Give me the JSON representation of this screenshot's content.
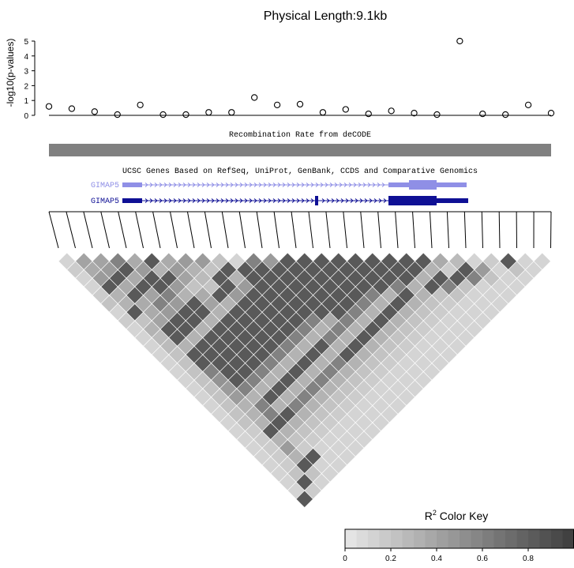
{
  "chart_data": [
    {
      "type": "scatter",
      "title": "Physical Length:9.1kb",
      "ylabel": "-log10(p-values)",
      "ylim": [
        0,
        5
      ],
      "yticks": [
        "5",
        "4",
        "3",
        "2",
        "1",
        "0"
      ],
      "points_neglog10p": [
        [
          1,
          0.6
        ],
        [
          2,
          0.45
        ],
        [
          3,
          0.25
        ],
        [
          4,
          0.05
        ],
        [
          5,
          0.7
        ],
        [
          6,
          0.05
        ],
        [
          7,
          0.05
        ],
        [
          8,
          0.2
        ],
        [
          9,
          0.2
        ],
        [
          10,
          1.2
        ],
        [
          11,
          0.7
        ],
        [
          12,
          0.75
        ],
        [
          13,
          0.2
        ],
        [
          14,
          0.4
        ],
        [
          15,
          0.1
        ],
        [
          16,
          0.3
        ],
        [
          17,
          0.15
        ],
        [
          18,
          0.05
        ],
        [
          19,
          5.0
        ],
        [
          20,
          0.1
        ],
        [
          21,
          0.05
        ],
        [
          22,
          0.7
        ],
        [
          23,
          0.15
        ]
      ]
    },
    {
      "type": "heatmap",
      "title": "R^2 Color Key",
      "colorkey_ticks": [
        "0",
        "0.2",
        "0.4",
        "0.6",
        "0.8"
      ],
      "n_markers": 30,
      "levels_rows_by_diagonal_offset": [
        [
          0.1,
          0.4,
          0.4,
          0.6,
          0.35,
          0.85,
          0.35,
          0.45,
          0.45,
          0.2,
          0.1,
          0.6,
          0.45,
          0.85,
          0.85,
          0.85,
          0.85,
          0.85,
          0.85,
          0.85,
          0.85,
          0.85,
          0.35,
          0.25,
          0.1,
          0.15,
          0.85,
          0.1,
          0.1
        ],
        [
          0.15,
          0.35,
          0.45,
          0.85,
          0.45,
          0.3,
          0.45,
          0.3,
          0.2,
          0.85,
          0.85,
          0.85,
          0.85,
          0.85,
          0.85,
          0.85,
          0.85,
          0.85,
          0.85,
          0.85,
          0.85,
          0.3,
          0.15,
          0.85,
          0.45,
          0.1,
          0.2,
          0.1
        ],
        [
          0.1,
          0.45,
          0.85,
          0.35,
          0.85,
          0.85,
          0.4,
          0.25,
          0.85,
          0.3,
          0.85,
          0.85,
          0.85,
          0.85,
          0.85,
          0.85,
          0.85,
          0.85,
          0.85,
          0.85,
          0.3,
          0.85,
          0.85,
          0.6,
          0.2,
          0.1,
          0.1
        ],
        [
          0.1,
          0.85,
          0.35,
          0.85,
          0.85,
          0.45,
          0.2,
          0.2,
          0.85,
          0.45,
          0.85,
          0.85,
          0.85,
          0.85,
          0.85,
          0.85,
          0.85,
          0.85,
          0.6,
          0.3,
          0.85,
          0.6,
          0.2,
          0.1,
          0.1,
          0.1
        ],
        [
          0.15,
          0.3,
          0.85,
          0.4,
          0.6,
          0.3,
          0.35,
          0.85,
          0.45,
          0.85,
          0.85,
          0.85,
          0.85,
          0.85,
          0.85,
          0.85,
          0.6,
          0.3,
          0.85,
          0.3,
          0.2,
          0.2,
          0.1,
          0.1,
          0.1
        ],
        [
          0.2,
          0.3,
          0.35,
          0.6,
          0.45,
          0.85,
          0.4,
          0.3,
          0.85,
          0.85,
          0.85,
          0.85,
          0.85,
          0.85,
          0.85,
          0.6,
          0.3,
          0.85,
          0.3,
          0.2,
          0.15,
          0.1,
          0.1,
          0.1
        ],
        [
          0.1,
          0.85,
          0.35,
          0.45,
          0.85,
          0.85,
          0.3,
          0.85,
          0.85,
          0.85,
          0.85,
          0.85,
          0.85,
          0.85,
          0.6,
          0.3,
          0.85,
          0.3,
          0.2,
          0.15,
          0.1,
          0.1,
          0.1
        ],
        [
          0.15,
          0.2,
          0.4,
          0.85,
          0.85,
          0.3,
          0.85,
          0.85,
          0.85,
          0.85,
          0.85,
          0.6,
          0.35,
          0.6,
          0.3,
          0.85,
          0.3,
          0.2,
          0.15,
          0.1,
          0.1,
          0.1
        ],
        [
          0.1,
          0.3,
          0.85,
          0.85,
          0.3,
          0.85,
          0.85,
          0.85,
          0.85,
          0.85,
          0.6,
          0.3,
          0.6,
          0.3,
          0.85,
          0.3,
          0.2,
          0.15,
          0.1,
          0.1,
          0.1
        ],
        [
          0.1,
          0.25,
          0.85,
          0.3,
          0.85,
          0.85,
          0.85,
          0.85,
          0.85,
          0.6,
          0.3,
          0.6,
          0.3,
          0.85,
          0.3,
          0.2,
          0.15,
          0.1,
          0.1,
          0.1
        ],
        [
          0.1,
          0.25,
          0.3,
          0.85,
          0.85,
          0.85,
          0.85,
          0.85,
          0.6,
          0.3,
          0.85,
          0.3,
          0.85,
          0.3,
          0.2,
          0.15,
          0.1,
          0.1,
          0.1
        ],
        [
          0.1,
          0.2,
          0.85,
          0.85,
          0.85,
          0.85,
          0.85,
          0.6,
          0.3,
          0.85,
          0.3,
          0.85,
          0.3,
          0.2,
          0.15,
          0.1,
          0.1,
          0.1
        ],
        [
          0.1,
          0.2,
          0.85,
          0.85,
          0.85,
          0.85,
          0.6,
          0.3,
          0.85,
          0.3,
          0.6,
          0.3,
          0.2,
          0.15,
          0.1,
          0.1,
          0.1
        ],
        [
          0.1,
          0.2,
          0.6,
          0.85,
          0.85,
          0.6,
          0.3,
          0.85,
          0.3,
          0.6,
          0.3,
          0.2,
          0.15,
          0.1,
          0.1,
          0.1
        ],
        [
          0.1,
          0.2,
          0.5,
          0.85,
          0.6,
          0.3,
          0.85,
          0.3,
          0.6,
          0.3,
          0.2,
          0.15,
          0.1,
          0.1,
          0.1
        ],
        [
          0.1,
          0.2,
          0.45,
          0.6,
          0.3,
          0.85,
          0.3,
          0.6,
          0.3,
          0.2,
          0.15,
          0.1,
          0.1,
          0.1
        ],
        [
          0.1,
          0.2,
          0.45,
          0.3,
          0.85,
          0.3,
          0.6,
          0.3,
          0.2,
          0.15,
          0.1,
          0.1,
          0.1
        ],
        [
          0.1,
          0.2,
          0.3,
          0.6,
          0.3,
          0.6,
          0.3,
          0.2,
          0.15,
          0.1,
          0.1,
          0.1
        ],
        [
          0.1,
          0.2,
          0.3,
          0.6,
          0.85,
          0.3,
          0.2,
          0.15,
          0.1,
          0.1,
          0.1
        ],
        [
          0.1,
          0.2,
          0.3,
          0.85,
          0.3,
          0.2,
          0.15,
          0.1,
          0.1,
          0.1
        ],
        [
          0.1,
          0.15,
          0.85,
          0.3,
          0.2,
          0.15,
          0.1,
          0.1,
          0.1
        ],
        [
          0.1,
          0.15,
          0.3,
          0.2,
          0.15,
          0.1,
          0.1,
          0.1
        ],
        [
          0.1,
          0.15,
          0.45,
          0.15,
          0.1,
          0.1,
          0.1
        ],
        [
          0.1,
          0.15,
          0.3,
          0.85,
          0.1,
          0.1
        ],
        [
          0.1,
          0.15,
          0.85,
          0.1,
          0.1
        ],
        [
          0.1,
          0.2,
          0.2,
          0.1
        ],
        [
          0.1,
          0.85,
          0.1
        ],
        [
          0.1,
          0.15
        ],
        [
          0.85
        ]
      ]
    }
  ],
  "recomb_track": {
    "label": "Recombination Rate from deCODE",
    "color": "#808080"
  },
  "genes_track": {
    "label": "UCSC Genes Based on RefSeq, UniProt, GenBank, CCDS and Comparative Genomics",
    "genes": [
      {
        "name": "GIMAP5",
        "color": "#8f8fe6"
      },
      {
        "name": "GIMAP5",
        "color": "#0f1095"
      }
    ]
  },
  "colors": {
    "r2_low": "#e4e4e4",
    "r2_high": "#414141"
  }
}
